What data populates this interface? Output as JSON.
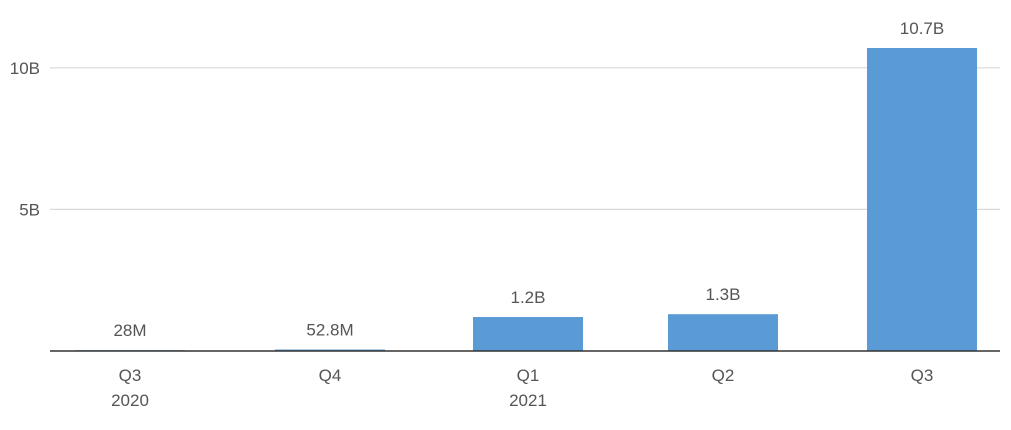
{
  "chart_data": {
    "type": "bar",
    "categories": [
      "Q3",
      "Q4",
      "Q1",
      "Q2",
      "Q3"
    ],
    "category_groups": [
      "2020",
      "",
      "2021",
      "",
      ""
    ],
    "values": [
      28000000,
      52800000,
      1200000000,
      1300000000,
      10700000000
    ],
    "data_labels": [
      "28M",
      "52.8M",
      "1.2B",
      "1.3B",
      "10.7B"
    ],
    "y_ticks": [
      {
        "value": 5000000000,
        "label": "5B"
      },
      {
        "value": 10000000000,
        "label": "10B"
      }
    ],
    "ylim": [
      0,
      10700000000
    ],
    "grid": true,
    "legend": "none",
    "title": "",
    "xlabel": "",
    "ylabel": "",
    "colors": {
      "bar": "#5b9bd5",
      "grid": "#d9d9d9",
      "axis": "#333333",
      "text": "#555555"
    }
  }
}
